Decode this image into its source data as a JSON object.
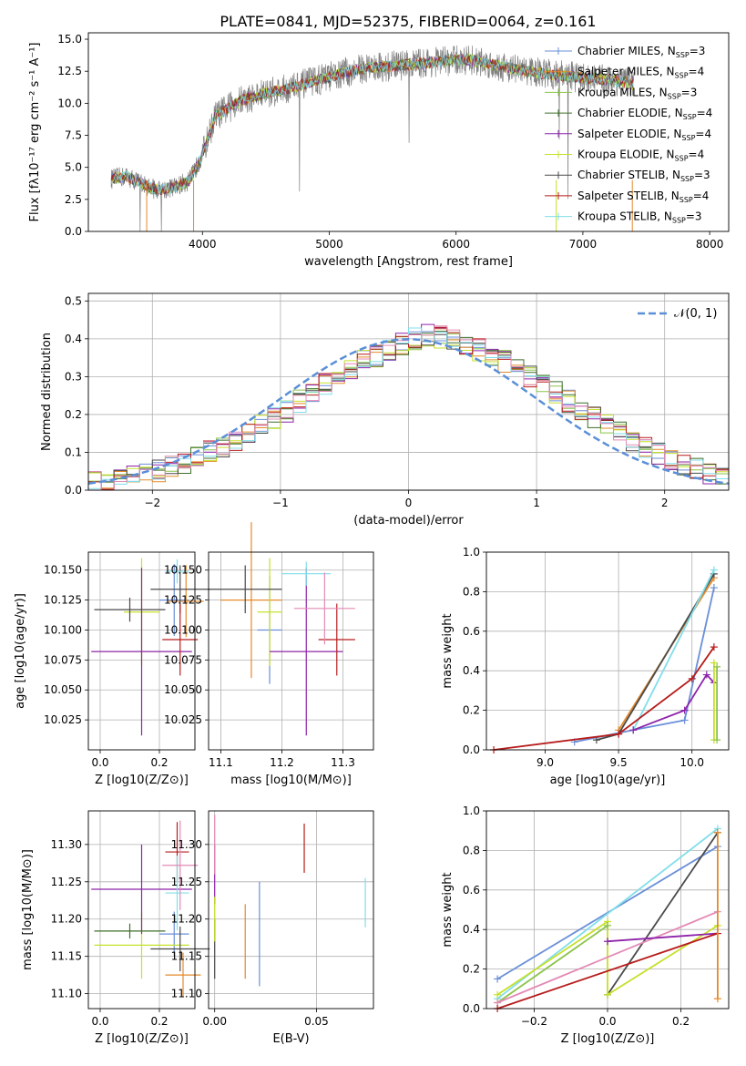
{
  "title": "PLATE=0841, MJD=52375, FIBERID=0064, z=0.161",
  "colors": {
    "c0": "#6a8fd8",
    "c1": "#e48a2a",
    "c2": "#8bc34a",
    "c3": "#3f6f2a",
    "c4": "#8e24aa",
    "c5": "#c6e02a",
    "c6": "#4a4a4a",
    "c7": "#b71c1c",
    "c8": "#80deea",
    "spectrum": "#808080",
    "pink": "#e38ab5"
  },
  "chart_data": [
    {
      "id": "spectrum",
      "type": "line",
      "xlabel": "wavelength [Angstrom, rest frame]",
      "ylabel": "Flux [fλ10⁻¹⁷ erg cm⁻² s⁻¹ A⁻¹]",
      "xlim": [
        3100,
        8150
      ],
      "ylim": [
        0,
        15.5
      ],
      "xticks": [
        "4000",
        "5000",
        "6000",
        "7000",
        "8000"
      ],
      "yticks": [
        "0.0",
        "2.5",
        "5.0",
        "7.5",
        "10.0",
        "12.5",
        "15.0"
      ],
      "legend_position": "right",
      "continuum": {
        "x": [
          3280,
          3400,
          3550,
          3650,
          3800,
          3900,
          4000,
          4100,
          4300,
          4500,
          4700,
          4900,
          5100,
          5300,
          5500,
          5700,
          5900,
          6100,
          6300,
          6500,
          6700,
          6900,
          7100,
          7300,
          7400
        ],
        "y": [
          4.1,
          4.3,
          3.6,
          3.2,
          3.5,
          4.0,
          6.0,
          9.0,
          10.2,
          10.8,
          11.2,
          11.8,
          12.3,
          12.8,
          12.9,
          13.1,
          13.3,
          13.4,
          13.0,
          12.6,
          12.3,
          12.1,
          11.9,
          11.7,
          11.5
        ]
      },
      "series": [
        {
          "name": "Chabrier MILES, N_SSP=3",
          "color": "c0"
        },
        {
          "name": "Salpeter MILES, N_SSP=4",
          "color": "c1"
        },
        {
          "name": "Kroupa MILES, N_SSP=3",
          "color": "c2"
        },
        {
          "name": "Chabrier ELODIE, N_SSP=4",
          "color": "c3"
        },
        {
          "name": "Salpeter ELODIE, N_SSP=4",
          "color": "c4"
        },
        {
          "name": "Kroupa ELODIE, N_SSP=4",
          "color": "c5"
        },
        {
          "name": "Chabrier STELIB, N_SSP=3",
          "color": "c6"
        },
        {
          "name": "Salpeter STELIB, N_SSP=4",
          "color": "c7"
        },
        {
          "name": "Kroupa STELIB, N_SSP=3",
          "color": "c8"
        }
      ]
    },
    {
      "id": "residuals",
      "type": "bar",
      "xlabel": "(data-model)/error",
      "ylabel": "Normed distribution",
      "xlim": [
        -2.5,
        2.5
      ],
      "ylim": [
        0,
        0.52
      ],
      "xticks": [
        "−2",
        "−1",
        "0",
        "1",
        "2"
      ],
      "yticks": [
        "0.0",
        "0.1",
        "0.2",
        "0.3",
        "0.4",
        "0.5"
      ],
      "grid": true,
      "legend_position": "top-right",
      "gaussian_label": "𝒩(0, 1)",
      "bin_width": 0.1,
      "bin_start": -2.5,
      "base_hist": [
        0.02,
        0.025,
        0.03,
        0.035,
        0.045,
        0.05,
        0.06,
        0.07,
        0.085,
        0.1,
        0.11,
        0.13,
        0.15,
        0.17,
        0.19,
        0.21,
        0.235,
        0.26,
        0.28,
        0.3,
        0.32,
        0.34,
        0.355,
        0.37,
        0.385,
        0.4,
        0.41,
        0.405,
        0.395,
        0.385,
        0.37,
        0.355,
        0.34,
        0.32,
        0.3,
        0.28,
        0.26,
        0.235,
        0.21,
        0.19,
        0.17,
        0.15,
        0.13,
        0.11,
        0.095,
        0.08,
        0.065,
        0.055,
        0.045,
        0.035
      ]
    },
    {
      "id": "age-vs-Z",
      "type": "scatter",
      "xlabel": "Z [log10(Z/Z⊙)]",
      "ylabel": "age  [log10(age/yr)]",
      "xlim": [
        -0.04,
        0.32
      ],
      "ylim": [
        10.0,
        10.165
      ],
      "xticks": [
        "0.0",
        "0.2"
      ],
      "yticks": [
        "10.025",
        "10.050",
        "10.075",
        "10.100",
        "10.125",
        "10.150"
      ],
      "points": [
        {
          "x": 0.25,
          "xerr": 0.05,
          "y": 10.125,
          "yerr": 0.03,
          "color": "c0"
        },
        {
          "x": 0.29,
          "xerr": 0.06,
          "y": 10.124,
          "yerr": 0.03,
          "color": "c1"
        },
        {
          "x": 0.14,
          "xerr": 0.06,
          "y": 10.115,
          "yerr": 0.045,
          "color": "c5"
        },
        {
          "x": 0.27,
          "xerr": 0.1,
          "y": 10.134,
          "yerr": 0.02,
          "color": "c6"
        },
        {
          "x": 0.14,
          "xerr": 0.17,
          "y": 10.082,
          "yerr": 0.07,
          "color": "c4"
        },
        {
          "x": 0.27,
          "xerr": 0.06,
          "y": 10.092,
          "yerr": 0.03,
          "color": "c7"
        },
        {
          "x": 0.26,
          "xerr": 0.04,
          "y": 10.149,
          "yerr": 0.01,
          "color": "c8"
        },
        {
          "x": 0.1,
          "xerr": 0.12,
          "y": 10.117,
          "yerr": 0.01,
          "color": "c6"
        }
      ]
    },
    {
      "id": "age-vs-mass",
      "type": "scatter",
      "xlabel": "mass [log10(M/M⊙)]",
      "ylabel": "",
      "xlim": [
        11.08,
        11.35
      ],
      "ylim": [
        10.0,
        10.165
      ],
      "xticks": [
        "11.1",
        "11.2",
        "11.3"
      ],
      "yticks": [
        "10.025",
        "10.050",
        "10.075",
        "10.100",
        "10.125",
        "10.150"
      ],
      "points": [
        {
          "x": 11.18,
          "xerr": 0.02,
          "y": 10.1,
          "yerr": 0.045,
          "color": "c0"
        },
        {
          "x": 11.15,
          "xerr": 0.05,
          "y": 10.125,
          "yerr": 0.065,
          "color": "c1"
        },
        {
          "x": 11.18,
          "xerr": 0.02,
          "y": 10.115,
          "yerr": 0.045,
          "color": "c5"
        },
        {
          "x": 11.14,
          "xerr": 0.06,
          "y": 10.134,
          "yerr": 0.02,
          "color": "c6"
        },
        {
          "x": 11.24,
          "xerr": 0.06,
          "y": 10.082,
          "yerr": 0.07,
          "color": "c4"
        },
        {
          "x": 11.29,
          "xerr": 0.03,
          "y": 10.092,
          "yerr": 0.03,
          "color": "c7"
        },
        {
          "x": 11.24,
          "xerr": 0.04,
          "y": 10.147,
          "yerr": 0.01,
          "color": "c8"
        },
        {
          "x": 11.27,
          "xerr": 0.05,
          "y": 10.118,
          "yerr": 0.03,
          "color": "pink"
        }
      ]
    },
    {
      "id": "massweight-vs-age",
      "type": "line",
      "xlabel": "age  [log10(age/yr)]",
      "ylabel": "mass weight",
      "xlim": [
        8.6,
        10.25
      ],
      "ylim": [
        0,
        1.0
      ],
      "xticks": [
        "9.0",
        "9.5",
        "10.0"
      ],
      "yticks": [
        "0.0",
        "0.2",
        "0.4",
        "0.6",
        "0.8",
        "1.0"
      ],
      "grid": true,
      "series": [
        {
          "color": "c0",
          "x": [
            9.2,
            9.6,
            9.95,
            10.15
          ],
          "y": [
            0.04,
            0.1,
            0.15,
            0.82
          ]
        },
        {
          "color": "c1",
          "x": [
            9.5,
            10.15
          ],
          "y": [
            0.1,
            0.87
          ]
        },
        {
          "color": "c6",
          "x": [
            9.35,
            9.5,
            10.15
          ],
          "y": [
            0.05,
            0.08,
            0.89
          ]
        },
        {
          "color": "c8",
          "x": [
            9.6,
            10.15
          ],
          "y": [
            0.1,
            0.91
          ]
        },
        {
          "color": "c7",
          "x": [
            8.65,
            9.5,
            10.0,
            10.15
          ],
          "y": [
            0.0,
            0.08,
            0.36,
            0.52
          ]
        },
        {
          "color": "c4",
          "x": [
            9.6,
            9.95,
            10.1,
            10.15
          ],
          "y": [
            0.1,
            0.2,
            0.38,
            0.34
          ]
        },
        {
          "color": "c5",
          "x": [
            10.15,
            10.15
          ],
          "y": [
            0.05,
            0.44
          ]
        },
        {
          "color": "c2",
          "x": [
            10.17,
            10.17
          ],
          "y": [
            0.05,
            0.42
          ]
        }
      ]
    },
    {
      "id": "mass-vs-Z",
      "type": "scatter",
      "xlabel": "Z [log10(Z/Z⊙)]",
      "ylabel": "mass [log10(M/M⊙)]",
      "xlim": [
        -0.04,
        0.32
      ],
      "ylim": [
        11.08,
        11.345
      ],
      "xticks": [
        "0.0",
        "0.2"
      ],
      "yticks": [
        "11.10",
        "11.15",
        "11.20",
        "11.25",
        "11.30"
      ],
      "points": [
        {
          "x": 0.25,
          "xerr": 0.05,
          "y": 11.18,
          "yerr": 0.03,
          "color": "c0"
        },
        {
          "x": 0.28,
          "xerr": 0.06,
          "y": 11.125,
          "yerr": 0.03,
          "color": "c1"
        },
        {
          "x": 0.14,
          "xerr": 0.16,
          "y": 11.165,
          "yerr": 0.045,
          "color": "c5"
        },
        {
          "x": 0.27,
          "xerr": 0.1,
          "y": 11.16,
          "yerr": 0.03,
          "color": "c6"
        },
        {
          "x": 0.14,
          "xerr": 0.17,
          "y": 11.24,
          "yerr": 0.06,
          "color": "c4"
        },
        {
          "x": 0.26,
          "xerr": 0.04,
          "y": 11.29,
          "yerr": 0.04,
          "color": "c7"
        },
        {
          "x": 0.26,
          "xerr": 0.04,
          "y": 11.235,
          "yerr": 0.05,
          "color": "c8"
        },
        {
          "x": 0.27,
          "xerr": 0.06,
          "y": 11.272,
          "yerr": 0.06,
          "color": "pink"
        },
        {
          "x": 0.1,
          "xerr": 0.12,
          "y": 11.184,
          "yerr": 0.01,
          "color": "c3"
        }
      ]
    },
    {
      "id": "mass-vs-EBV",
      "type": "scatter",
      "xlabel": "E(B-V)",
      "ylabel": "",
      "xlim": [
        -0.003,
        0.078
      ],
      "ylim": [
        11.08,
        11.345
      ],
      "xticks": [
        "0.00",
        "0.05"
      ],
      "yticks": [
        "11.10",
        "11.15",
        "11.20",
        "11.25",
        "11.30"
      ],
      "points": [
        {
          "x": 0.0,
          "xerr": 0,
          "y": 11.16,
          "yerr": 0.04,
          "color": "c6"
        },
        {
          "x": 0.0,
          "xerr": 0,
          "y": 11.26,
          "yerr": 0.04,
          "color": "c4"
        },
        {
          "x": 0.0,
          "xerr": 0,
          "y": 11.3,
          "yerr": 0.04,
          "color": "pink"
        },
        {
          "x": 0.0,
          "xerr": 0,
          "y": 11.2,
          "yerr": 0.03,
          "color": "c5"
        },
        {
          "x": 0.015,
          "xerr": 0,
          "y": 11.17,
          "yerr": 0.05,
          "color": "c1"
        },
        {
          "x": 0.022,
          "xerr": 0,
          "y": 11.18,
          "yerr": 0.07,
          "color": "c0"
        },
        {
          "x": 0.044,
          "xerr": 0,
          "y": 11.295,
          "yerr": 0.033,
          "color": "c7"
        },
        {
          "x": 0.074,
          "xerr": 0,
          "y": 11.222,
          "yerr": 0.033,
          "color": "c8"
        }
      ]
    },
    {
      "id": "massweight-vs-Z",
      "type": "line",
      "xlabel": "Z [log10(Z/Z⊙)]",
      "ylabel": "mass weight",
      "xlim": [
        -0.33,
        0.33
      ],
      "ylim": [
        0,
        1.0
      ],
      "xticks": [
        "−0.2",
        "0.0",
        "0.2"
      ],
      "yticks": [
        "0.0",
        "0.2",
        "0.4",
        "0.6",
        "0.8",
        "1.0"
      ],
      "grid": true,
      "series": [
        {
          "color": "c0",
          "x": [
            -0.3,
            0.3
          ],
          "y": [
            0.15,
            0.82
          ]
        },
        {
          "color": "c8",
          "x": [
            -0.3,
            0.3
          ],
          "y": [
            0.05,
            0.91
          ]
        },
        {
          "color": "c6",
          "x": [
            0.0,
            0.3
          ],
          "y": [
            0.07,
            0.89
          ]
        },
        {
          "color": "c5",
          "x": [
            -0.3,
            0.0,
            0.0,
            0.3
          ],
          "y": [
            0.07,
            0.44,
            0.07,
            0.42
          ]
        },
        {
          "color": "c2",
          "x": [
            -0.3,
            0.0
          ],
          "y": [
            0.03,
            0.42
          ]
        },
        {
          "color": "pink",
          "x": [
            -0.3,
            0.3
          ],
          "y": [
            0.03,
            0.49
          ]
        },
        {
          "color": "c4",
          "x": [
            0.0,
            0.3
          ],
          "y": [
            0.34,
            0.38
          ]
        },
        {
          "color": "c7",
          "x": [
            -0.3,
            0.3
          ],
          "y": [
            0.0,
            0.38
          ]
        },
        {
          "color": "c1",
          "x": [
            0.3,
            0.3
          ],
          "y": [
            0.05,
            0.89
          ]
        }
      ]
    }
  ]
}
